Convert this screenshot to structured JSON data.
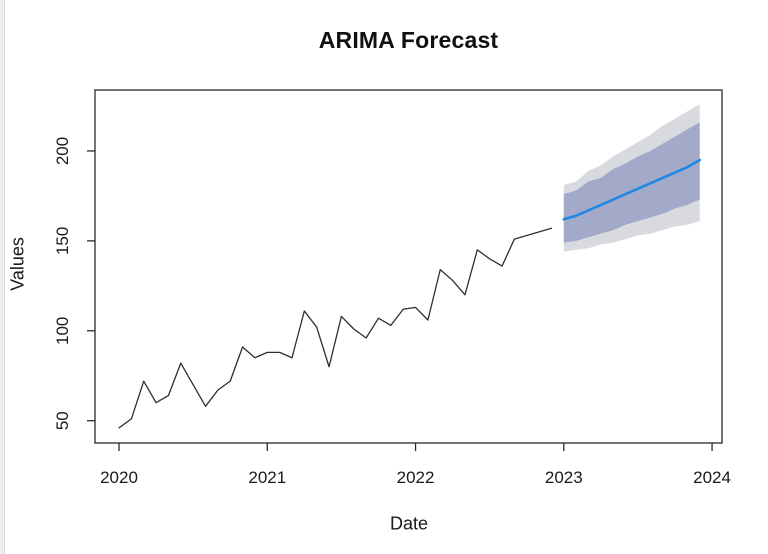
{
  "colors": {
    "forecast_blue": "#1E88E5",
    "band_inner_80": "#A3A9C9",
    "band_outer_95": "#D9DADF",
    "observed_line": "#2e2e2e",
    "axis": "#2b2b2b",
    "text": "#1a1a1a"
  },
  "chart_data": {
    "type": "line",
    "title": "ARIMA Forecast",
    "xlabel": "Date",
    "ylabel": "Values",
    "x_ticks": [
      "2020",
      "2021",
      "2022",
      "2023",
      "2024"
    ],
    "y_ticks": [
      "50",
      "100",
      "150",
      "200"
    ],
    "xlim": [
      2019.838,
      2024.067
    ],
    "ylim": [
      37.6,
      233.9
    ],
    "grid": false,
    "legend": "none",
    "frequency": "monthly",
    "series": [
      {
        "name": "observed",
        "color": "#2e2e2e",
        "width": 1.3,
        "x_start": 2020.0,
        "x_step": 0.0833333,
        "values": [
          46,
          51,
          72,
          60,
          64,
          82,
          70,
          58,
          67,
          72,
          91,
          85,
          88,
          88,
          85,
          111,
          102,
          80,
          108,
          101,
          96,
          107,
          103,
          112,
          113,
          106,
          134,
          128,
          120,
          145,
          140,
          136,
          151,
          153,
          155,
          157
        ]
      },
      {
        "name": "forecast-mean",
        "color": "#1E88E5",
        "width": 2.6,
        "x_start": 2023.0,
        "x_step": 0.0833333,
        "values": [
          162,
          164,
          167,
          170,
          173,
          176,
          179,
          182,
          185,
          188,
          191,
          195
        ]
      }
    ],
    "bands": [
      {
        "name": "95-interval",
        "color": "#D9DADF",
        "x_start": 2023.0,
        "x_step": 0.0833333,
        "lower": [
          144,
          145,
          146,
          148,
          149,
          151,
          153,
          154,
          156,
          158,
          159,
          161
        ],
        "upper": [
          181,
          183,
          189,
          192,
          197,
          201,
          205,
          209,
          214,
          218,
          222,
          226
        ]
      },
      {
        "name": "80-interval",
        "color": "#A3A9C9",
        "x_start": 2023.0,
        "x_step": 0.0833333,
        "lower": [
          149,
          150,
          152,
          154,
          156,
          159,
          161,
          163,
          165,
          168,
          170,
          173
        ],
        "upper": [
          176,
          178,
          183,
          185,
          190,
          193,
          197,
          200,
          204,
          208,
          212,
          216
        ]
      }
    ]
  }
}
